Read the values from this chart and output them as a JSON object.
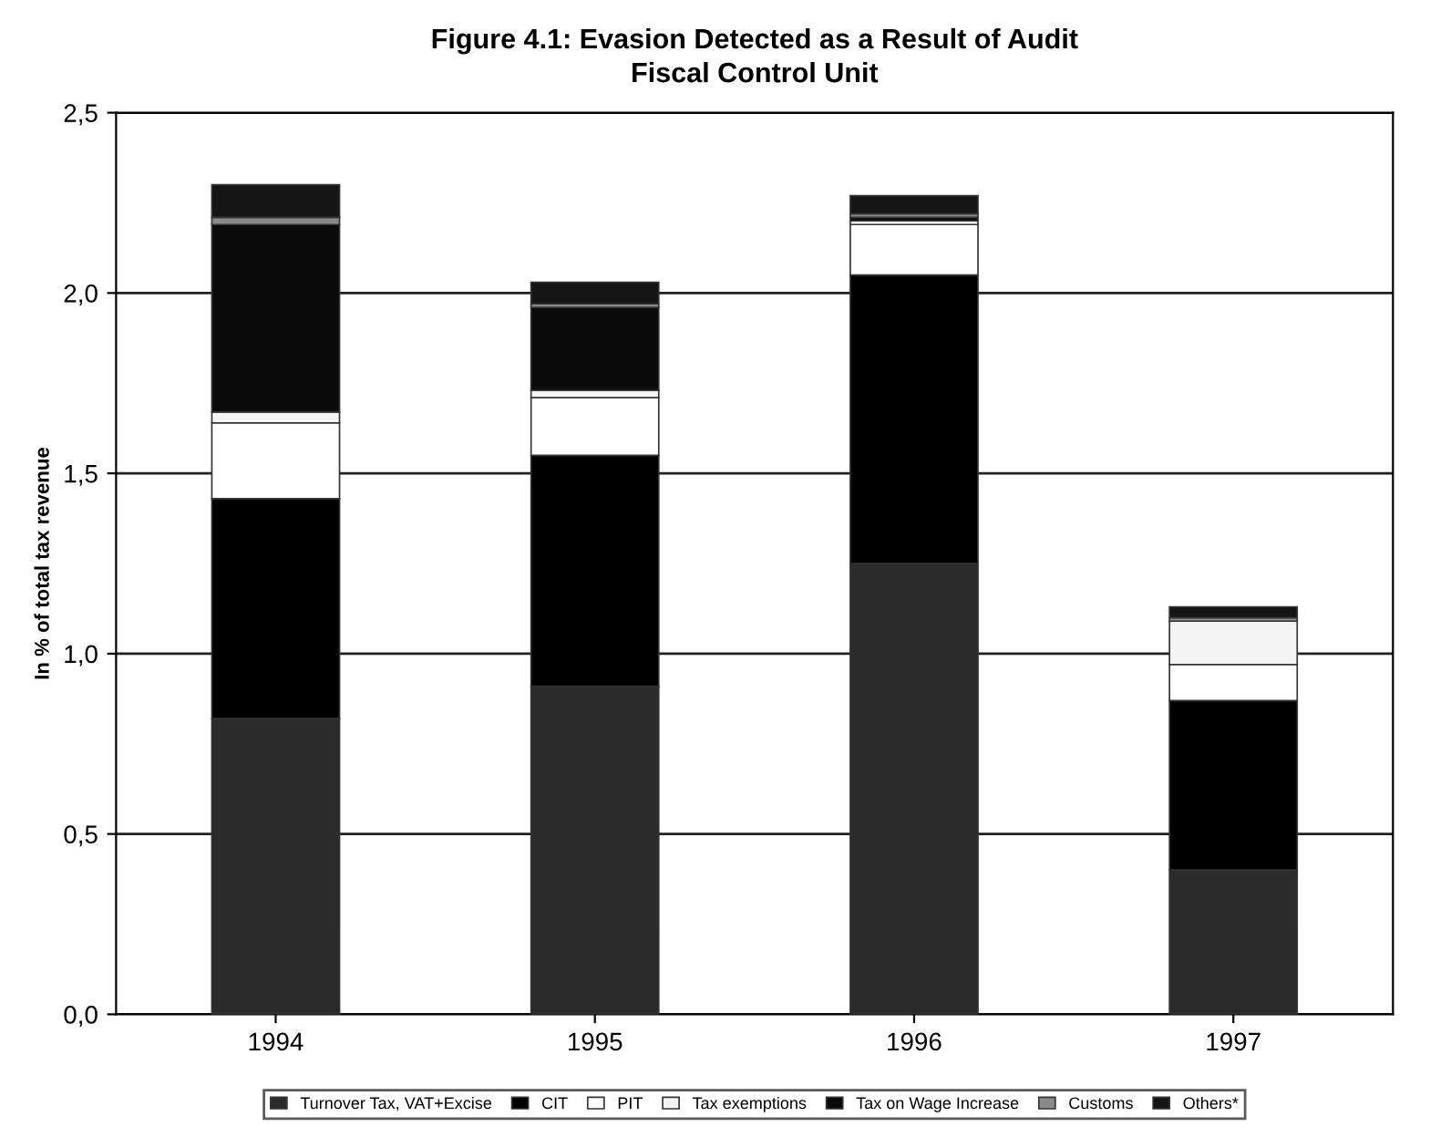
{
  "chart_data": {
    "type": "bar",
    "title": "Figure 4.1: Evasion Detected as a Result of Audit",
    "subtitle": "Fiscal Control Unit",
    "ylabel": "In % of total tax revenue",
    "categories": [
      "1994",
      "1995",
      "1996",
      "1997"
    ],
    "stacked": true,
    "series": [
      {
        "name": "Turnover Tax, VAT+Excise",
        "color": "#2b2b2b",
        "values": [
          0.82,
          0.91,
          1.25,
          0.4
        ]
      },
      {
        "name": "CIT",
        "color": "#000000",
        "values": [
          0.61,
          0.64,
          0.8,
          0.47
        ]
      },
      {
        "name": "PIT",
        "color": "#ffffff",
        "values": [
          0.21,
          0.16,
          0.14,
          0.1
        ]
      },
      {
        "name": "Tax exemptions",
        "color": "#f4f4f4",
        "values": [
          0.03,
          0.02,
          0.01,
          0.12
        ]
      },
      {
        "name": "Tax on Wage Increase",
        "color": "#0a0a0a",
        "values": [
          0.52,
          0.23,
          0.01,
          0.0
        ]
      },
      {
        "name": "Customs",
        "color": "#8a8a8a",
        "values": [
          0.02,
          0.01,
          0.01,
          0.01
        ]
      },
      {
        "name": "Others*",
        "color": "#151515",
        "values": [
          0.09,
          0.06,
          0.05,
          0.03
        ]
      }
    ],
    "ylim": [
      0,
      2.5
    ],
    "yticks": [
      {
        "value": 0,
        "label": "0,0"
      },
      {
        "value": 0.5,
        "label": "0,5"
      },
      {
        "value": 1,
        "label": "1,0"
      },
      {
        "value": 1.5,
        "label": "1,5"
      },
      {
        "value": 2,
        "label": "2,0"
      },
      {
        "value": 2.5,
        "label": "2,5"
      }
    ],
    "grid": "y",
    "legend": "bottom"
  }
}
